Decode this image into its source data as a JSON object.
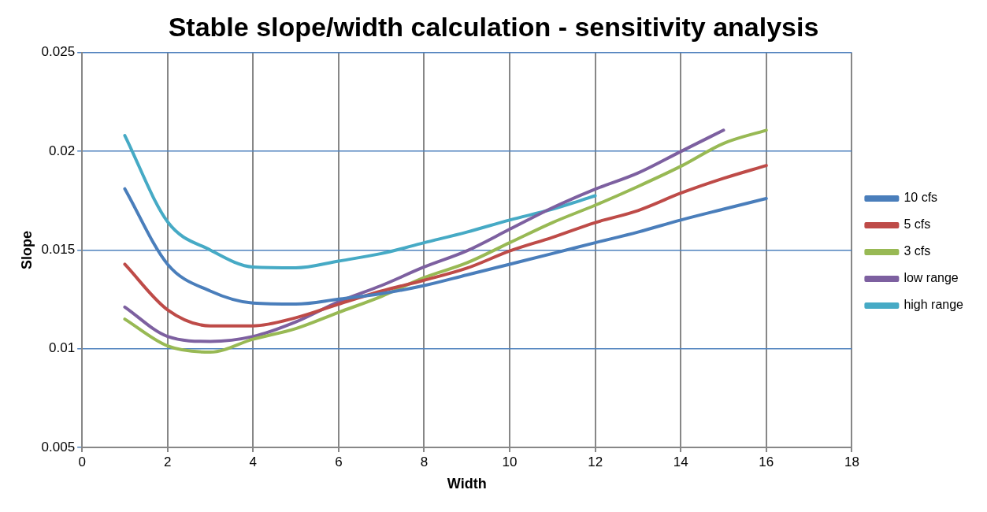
{
  "chart_data": {
    "type": "line",
    "title": "Stable slope/width calculation - sensitivity analysis",
    "xlabel": "Width",
    "ylabel": "Slope",
    "x": [
      1,
      2,
      3,
      4,
      5,
      6,
      7,
      8,
      9,
      10,
      11,
      12,
      13,
      14,
      15,
      16
    ],
    "series": [
      {
        "name": "10 cfs",
        "color": "#4a7ebb",
        "values": [
          0.0181,
          0.01428,
          0.01292,
          0.01231,
          0.01226,
          0.01251,
          0.01279,
          0.0132,
          0.01374,
          0.01428,
          0.01482,
          0.01537,
          0.01591,
          0.01652,
          0.01707,
          0.01761
        ]
      },
      {
        "name": "5 cfs",
        "color": "#be4b48",
        "values": [
          0.01428,
          0.01197,
          0.01116,
          0.01116,
          0.01157,
          0.01226,
          0.01292,
          0.01347,
          0.01408,
          0.01495,
          0.01564,
          0.01639,
          0.017,
          0.01788,
          0.01863,
          0.01928
        ]
      },
      {
        "name": "3 cfs",
        "color": "#98b954",
        "values": [
          0.0115,
          0.01014,
          0.00983,
          0.01048,
          0.01102,
          0.01184,
          0.01265,
          0.0136,
          0.01435,
          0.01537,
          0.01639,
          0.01727,
          0.01822,
          0.01924,
          0.0204,
          0.02107
        ]
      },
      {
        "name": "low range",
        "color": "#7d60a0",
        "values": [
          0.01211,
          0.01062,
          0.01037,
          0.01062,
          0.01136,
          0.01238,
          0.0132,
          0.01414,
          0.01496,
          0.01605,
          0.01714,
          0.01808,
          0.0189,
          0.01999,
          0.02107,
          null
        ]
      },
      {
        "name": "high range",
        "color": "#46aac5",
        "values": [
          0.0208,
          0.01643,
          0.015,
          0.01414,
          0.0141,
          0.01444,
          0.01482,
          0.01537,
          0.01591,
          0.01652,
          0.01707,
          0.01775,
          null,
          null,
          null,
          null
        ]
      }
    ],
    "xlim": [
      0,
      18
    ],
    "xticks": [
      0,
      2,
      4,
      6,
      8,
      10,
      12,
      14,
      16,
      18
    ],
    "ylim": [
      0.005,
      0.025
    ],
    "yticks": [
      0.005,
      0.01,
      0.015,
      0.02,
      0.025
    ],
    "grid": true,
    "legend": "right",
    "marker": "none",
    "line_style": "solid"
  }
}
